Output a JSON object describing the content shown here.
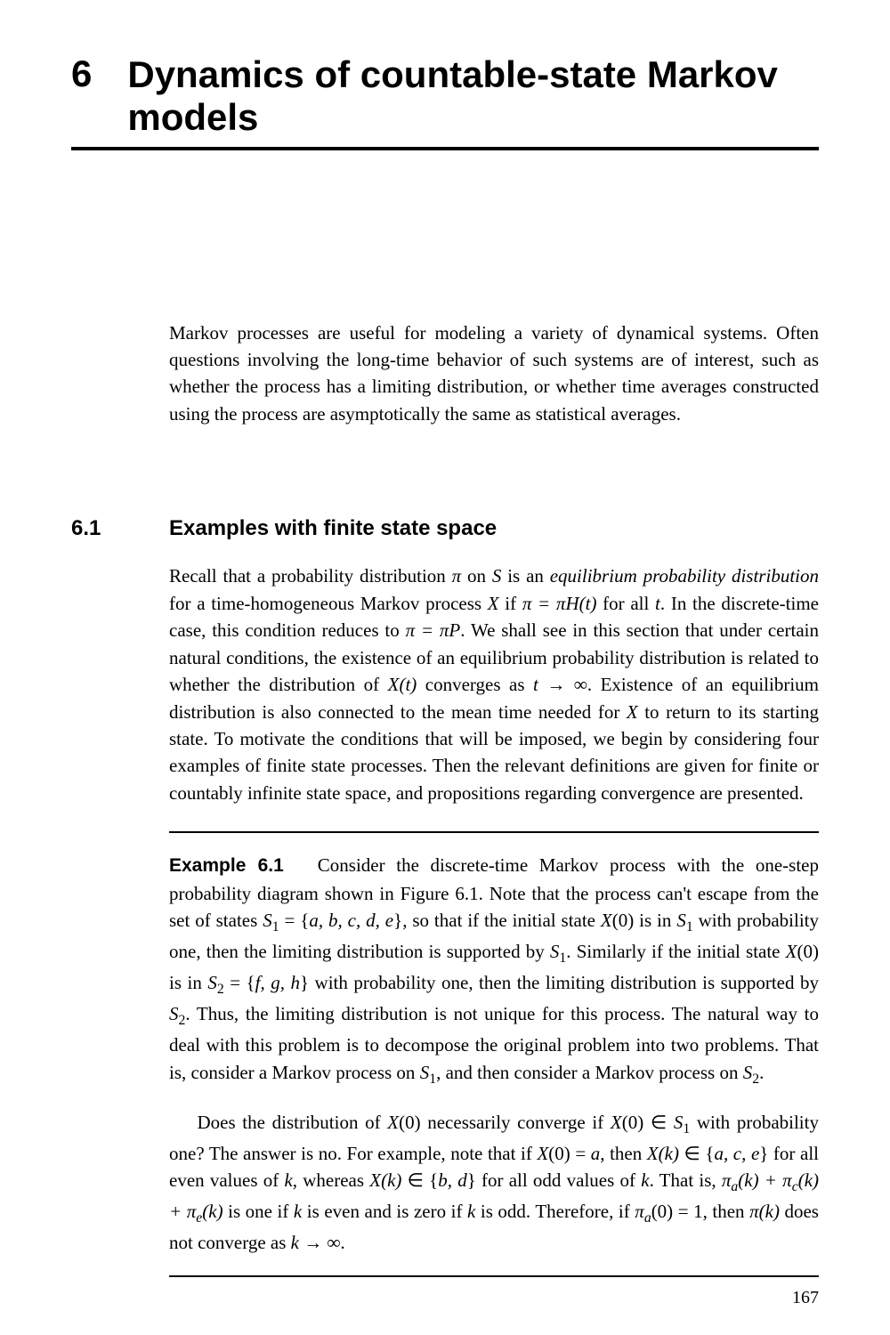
{
  "chapter": {
    "number": "6",
    "title": "Dynamics of countable-state Markov models"
  },
  "intro": "Markov processes are useful for modeling a variety of dynamical systems. Often questions involving the long-time behavior of such systems are of interest, such as whether the process has a limiting distribution, or whether time averages constructed using the process are asymptotically the same as statistical averages.",
  "section": {
    "number": "6.1",
    "title": "Examples with finite state space"
  },
  "section_body_html": "Recall that a probability distribution <span class='math'>π</span> on <span class='math'>S</span> is an <span class='ital'>equilibrium probability distribution</span> for a time-homogeneous Markov process <span class='math'>X</span> if <span class='math'>π = πH(t)</span> for all <span class='math'>t</span>. In the discrete-time case, this condition reduces to <span class='math'>π = πP</span>. We shall see in this section that under certain natural conditions, the existence of an equilibrium probability distribution is related to whether the distribution of <span class='math'>X(t)</span> converges as <span class='math'>t → ∞</span>. Existence of an equilibrium distribution is also connected to the mean time needed for <span class='math'>X</span> to return to its starting state. To motivate the conditions that will be imposed, we begin by considering four examples of finite state processes. Then the relevant definitions are given for finite or countably infinite state space, and propositions regarding convergence are presented.",
  "example": {
    "label": "Example 6.1",
    "p1_html": "Consider the discrete-time Markov process with the one-step probability diagram shown in Figure 6.1. Note that the process can't escape from the set of states <span class='math'>S</span><span class='sub'>1</span> = {<span class='math'>a, b, c, d, e</span>}, so that if the initial state <span class='math'>X</span>(0) is in <span class='math'>S</span><span class='sub'>1</span> with probability one, then the limiting distribution is supported by <span class='math'>S</span><span class='sub'>1</span>. Similarly if the initial state <span class='math'>X</span>(0) is in <span class='math'>S</span><span class='sub'>2</span> = {<span class='math'>f, g, h</span>} with probability one, then the limiting distribution is supported by <span class='math'>S</span><span class='sub'>2</span>. Thus, the limiting distribution is not unique for this process. The natural way to deal with this problem is to decompose the original problem into two problems. That is, consider a Markov process on <span class='math'>S</span><span class='sub'>1</span>, and then consider a Markov process on <span class='math'>S</span><span class='sub'>2</span>.",
    "p2_html": "Does the distribution of <span class='math'>X</span>(0) necessarily converge if <span class='math'>X</span>(0) ∈ <span class='math'>S</span><span class='sub'>1</span> with probability one? The answer is no. For example, note that if <span class='math'>X</span>(0) = <span class='math'>a</span>, then <span class='math'>X(k)</span> ∈ {<span class='math'>a, c, e</span>} for all even values of <span class='math'>k</span>, whereas <span class='math'>X(k)</span> ∈ {<span class='math'>b, d</span>} for all odd values of <span class='math'>k</span>. That is, <span class='math'>π<span class='subit'>a</span>(k) + π<span class='subit'>c</span>(k) + π<span class='subit'>e</span>(k)</span> is one if <span class='math'>k</span> is even and is zero if <span class='math'>k</span> is odd. Therefore, if <span class='math'>π<span class='subit'>a</span></span>(0) = 1, then <span class='math'>π(k)</span> does not converge as <span class='math'>k → ∞</span>."
  },
  "page_number": "167"
}
